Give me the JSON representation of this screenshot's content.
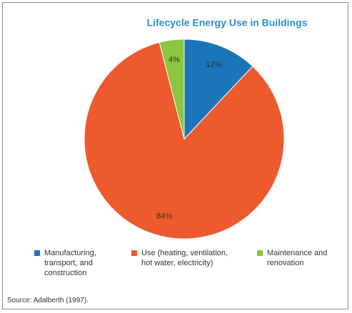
{
  "chart_data": {
    "type": "pie",
    "title": "Lifecycle Energy Use in Buildings",
    "categories": [
      "Manufacturing, transport, and construction",
      "Use (heating, ventilation, hot water, electricity)",
      "Maintenance and renovation"
    ],
    "values": [
      12,
      84,
      4
    ],
    "value_labels": [
      "12%",
      "84%",
      "4%"
    ],
    "colors": [
      "#1b75b8",
      "#ec5a2e",
      "#8cc63e"
    ],
    "source": "Source: Adalberth (1997)."
  }
}
